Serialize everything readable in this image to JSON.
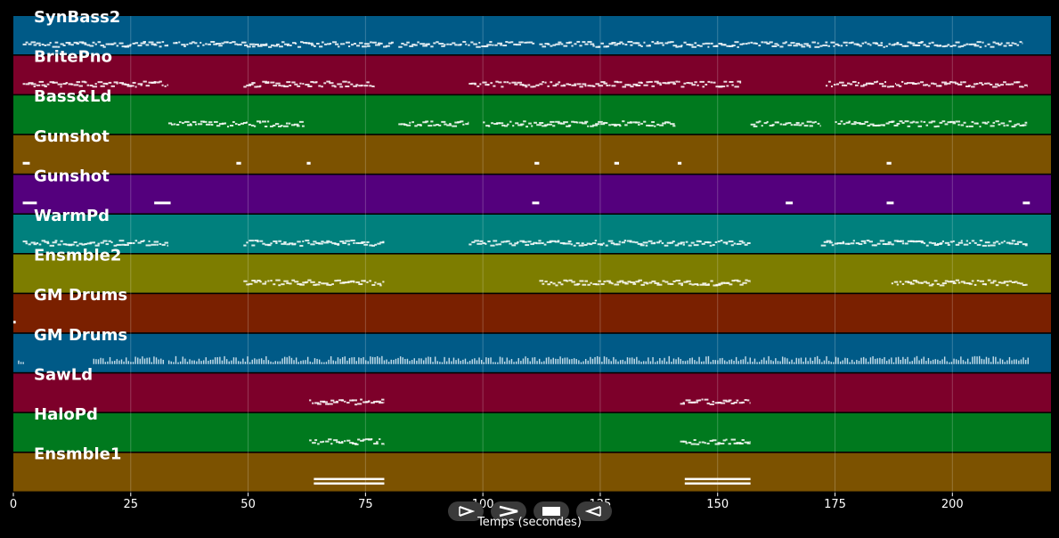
{
  "xlabel": "Temps (secondes)",
  "controls": [
    {
      "name": "play-forward-button",
      "icon": "play-outline-icon"
    },
    {
      "name": "fast-forward-button",
      "icon": "chevron-right-icon"
    },
    {
      "name": "stop-button",
      "icon": "stop-icon"
    },
    {
      "name": "reverse-button",
      "icon": "play-reverse-outline-icon"
    }
  ],
  "chart_data": {
    "type": "piano-roll",
    "xlabel": "Temps (secondes)",
    "xlim": [
      0,
      221
    ],
    "xticks": [
      0,
      25,
      50,
      75,
      100,
      125,
      150,
      175,
      200
    ],
    "tracks": [
      {
        "name": "SynBass2",
        "color": "#005a87",
        "pattern": "dense",
        "segments": [
          [
            2,
            33
          ],
          [
            34,
            48
          ],
          [
            48,
            81
          ],
          [
            82,
            111
          ],
          [
            112,
            175
          ],
          [
            175,
            215
          ]
        ]
      },
      {
        "name": "BritePno",
        "color": "#7d002a",
        "pattern": "dense",
        "segments": [
          [
            2,
            33
          ],
          [
            49,
            77
          ],
          [
            97,
            112
          ],
          [
            112,
            155
          ],
          [
            173,
            188
          ],
          [
            188,
            216
          ]
        ]
      },
      {
        "name": "Bass&Ld",
        "color": "#00791e",
        "pattern": "dense",
        "segments": [
          [
            33,
            62
          ],
          [
            82,
            97
          ],
          [
            100,
            141
          ],
          [
            157,
            172
          ],
          [
            175,
            216
          ]
        ]
      },
      {
        "name": "Gunshot",
        "color": "#7c5200",
        "pattern": "hits",
        "segments": [
          [
            2,
            3.5
          ],
          [
            47.5,
            48.5
          ],
          [
            62.5,
            63.3
          ],
          [
            111,
            112
          ],
          [
            128,
            129
          ],
          [
            141.5,
            142.3
          ],
          [
            186,
            187
          ]
        ]
      },
      {
        "name": "Gunshot",
        "color": "#54007d",
        "pattern": "hits",
        "segments": [
          [
            2,
            5
          ],
          [
            30,
            33.5
          ],
          [
            110.5,
            112
          ],
          [
            164.5,
            166
          ],
          [
            186,
            187.5
          ],
          [
            215,
            216.5
          ]
        ]
      },
      {
        "name": "WarmPd",
        "color": "#00807d",
        "pattern": "dense",
        "segments": [
          [
            2,
            33
          ],
          [
            49,
            79
          ],
          [
            97,
            113
          ],
          [
            113,
            157
          ],
          [
            172,
            187
          ],
          [
            187,
            216
          ]
        ]
      },
      {
        "name": "Ensmble2",
        "color": "#7d7d00",
        "pattern": "dense",
        "segments": [
          [
            49,
            79
          ],
          [
            112,
            157
          ],
          [
            187,
            216
          ]
        ]
      },
      {
        "name": "GM Drums",
        "color": "#7a2000",
        "pattern": "hits",
        "segments": [
          [
            0,
            0.5
          ]
        ]
      },
      {
        "name": "GM Drums",
        "color": "#005a87",
        "pattern": "perc",
        "segments": [
          [
            1,
            2
          ],
          [
            17,
            32
          ],
          [
            33,
            216
          ]
        ]
      },
      {
        "name": "SawLd",
        "color": "#7d002a",
        "pattern": "dense",
        "segments": [
          [
            63,
            79
          ],
          [
            142,
            157
          ]
        ]
      },
      {
        "name": "HaloPd",
        "color": "#00791e",
        "pattern": "dense",
        "segments": [
          [
            63,
            79
          ],
          [
            142,
            157
          ]
        ]
      },
      {
        "name": "Ensmble1",
        "color": "#7c5200",
        "pattern": "double",
        "segments": [
          [
            64,
            79
          ],
          [
            143,
            157
          ]
        ]
      }
    ]
  }
}
